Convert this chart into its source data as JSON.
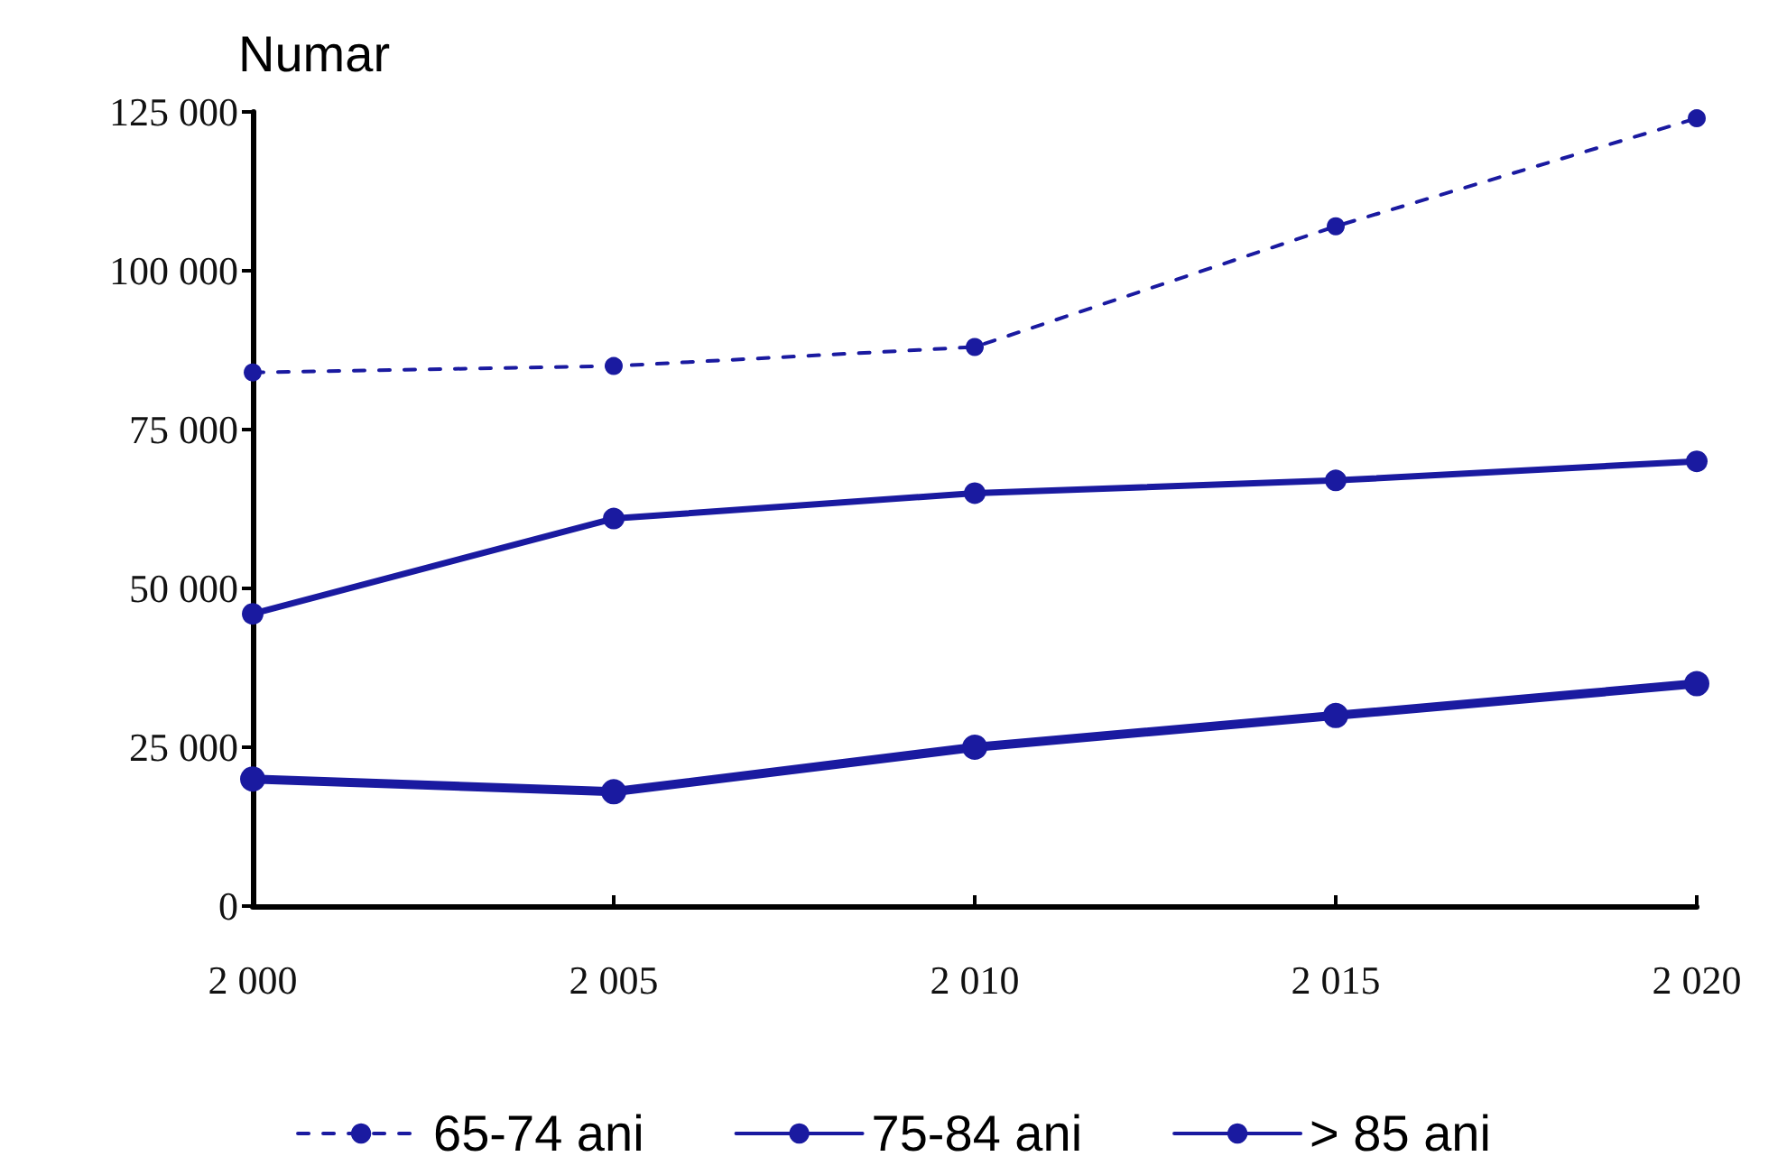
{
  "chart_data": {
    "type": "line",
    "ylabel": "Numar",
    "x": [
      2000,
      2005,
      2010,
      2015,
      2020
    ],
    "series": [
      {
        "name": "65-74 ani",
        "color": "#1a1aa0",
        "values": [
          84000,
          85000,
          88000,
          107000,
          124000
        ],
        "line_style": "dashed"
      },
      {
        "name": "75-84 ani",
        "color": "#1a1aa0",
        "values": [
          46000,
          61000,
          65000,
          67000,
          70000
        ],
        "line_style": "solid"
      },
      {
        "name": "> 85 ani",
        "color": "#1a1aa0",
        "values": [
          20000,
          18000,
          25000,
          30000,
          35000
        ],
        "line_style": "solid"
      }
    ],
    "xlim": [
      2000,
      2020
    ],
    "xticks": [
      {
        "value": 2000,
        "label": "2 000"
      },
      {
        "value": 2005,
        "label": "2 005"
      },
      {
        "value": 2010,
        "label": "2 010"
      },
      {
        "value": 2015,
        "label": "2 015"
      },
      {
        "value": 2020,
        "label": "2 020"
      }
    ],
    "ylim": [
      0,
      125000
    ],
    "yticks": [
      0,
      {
        "value": 25000,
        "label": "25 000"
      },
      {
        "value": 50000,
        "label": "50 000"
      },
      {
        "value": 75000,
        "label": "75 000"
      },
      {
        "value": 100000,
        "label": "100 000"
      },
      {
        "value": 125000,
        "label": "125 000"
      }
    ],
    "grid": false,
    "legend": "bottom",
    "marker": "circle"
  }
}
